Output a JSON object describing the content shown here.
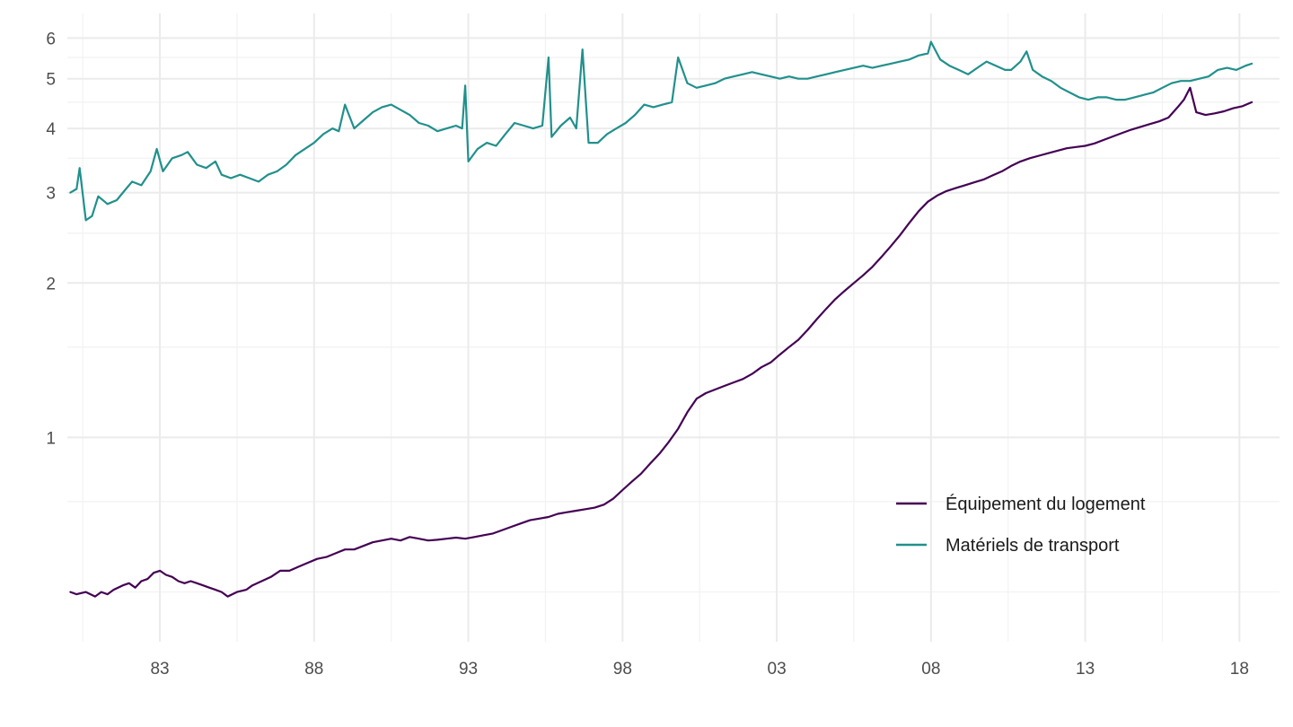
{
  "chart_data": {
    "type": "line",
    "x_scale": "time",
    "y_scale": "log",
    "xlim": [
      1980.0,
      2019.3
    ],
    "ylim": [
      0.4,
      6.7
    ],
    "grid": true,
    "legend_position": "bottom-right",
    "x_ticks": [
      {
        "value": 1983,
        "label": "83"
      },
      {
        "value": 1988,
        "label": "88"
      },
      {
        "value": 1993,
        "label": "93"
      },
      {
        "value": 1998,
        "label": "98"
      },
      {
        "value": 2003,
        "label": "03"
      },
      {
        "value": 2008,
        "label": "08"
      },
      {
        "value": 2013,
        "label": "13"
      },
      {
        "value": 2018,
        "label": "18"
      }
    ],
    "y_ticks": [
      {
        "value": 1,
        "label": "1"
      },
      {
        "value": 2,
        "label": "2"
      },
      {
        "value": 3,
        "label": "3"
      },
      {
        "value": 4,
        "label": "4"
      },
      {
        "value": 5,
        "label": "5"
      },
      {
        "value": 6,
        "label": "6"
      }
    ],
    "y_minor": [
      0.5,
      0.75,
      1.5,
      2.5,
      3.5,
      4.5,
      5.5
    ],
    "series": [
      {
        "name": "Équipement du logement",
        "color": "#440154",
        "points": [
          [
            1980.1,
            0.5
          ],
          [
            1980.3,
            0.495
          ],
          [
            1980.6,
            0.5
          ],
          [
            1980.9,
            0.49
          ],
          [
            1981.1,
            0.5
          ],
          [
            1981.3,
            0.495
          ],
          [
            1981.5,
            0.505
          ],
          [
            1981.8,
            0.515
          ],
          [
            1982.0,
            0.52
          ],
          [
            1982.2,
            0.51
          ],
          [
            1982.4,
            0.525
          ],
          [
            1982.6,
            0.53
          ],
          [
            1982.8,
            0.545
          ],
          [
            1983.0,
            0.55
          ],
          [
            1983.2,
            0.54
          ],
          [
            1983.4,
            0.535
          ],
          [
            1983.6,
            0.525
          ],
          [
            1983.8,
            0.52
          ],
          [
            1984.0,
            0.525
          ],
          [
            1984.2,
            0.52
          ],
          [
            1984.4,
            0.515
          ],
          [
            1984.6,
            0.51
          ],
          [
            1984.8,
            0.505
          ],
          [
            1985.0,
            0.5
          ],
          [
            1985.2,
            0.49
          ],
          [
            1985.5,
            0.5
          ],
          [
            1985.8,
            0.505
          ],
          [
            1986.0,
            0.515
          ],
          [
            1986.3,
            0.525
          ],
          [
            1986.6,
            0.535
          ],
          [
            1986.9,
            0.55
          ],
          [
            1987.2,
            0.55
          ],
          [
            1987.5,
            0.56
          ],
          [
            1987.8,
            0.57
          ],
          [
            1988.1,
            0.58
          ],
          [
            1988.4,
            0.585
          ],
          [
            1988.7,
            0.595
          ],
          [
            1989.0,
            0.605
          ],
          [
            1989.3,
            0.605
          ],
          [
            1989.6,
            0.615
          ],
          [
            1989.9,
            0.625
          ],
          [
            1990.2,
            0.63
          ],
          [
            1990.5,
            0.635
          ],
          [
            1990.8,
            0.63
          ],
          [
            1991.1,
            0.64
          ],
          [
            1991.4,
            0.635
          ],
          [
            1991.7,
            0.63
          ],
          [
            1992.0,
            0.632
          ],
          [
            1992.3,
            0.635
          ],
          [
            1992.6,
            0.638
          ],
          [
            1992.9,
            0.635
          ],
          [
            1993.2,
            0.64
          ],
          [
            1993.5,
            0.645
          ],
          [
            1993.8,
            0.65
          ],
          [
            1994.1,
            0.66
          ],
          [
            1994.4,
            0.67
          ],
          [
            1994.7,
            0.68
          ],
          [
            1995.0,
            0.69
          ],
          [
            1995.3,
            0.695
          ],
          [
            1995.6,
            0.7
          ],
          [
            1995.9,
            0.71
          ],
          [
            1996.2,
            0.715
          ],
          [
            1996.5,
            0.72
          ],
          [
            1996.8,
            0.725
          ],
          [
            1997.1,
            0.73
          ],
          [
            1997.4,
            0.74
          ],
          [
            1997.7,
            0.76
          ],
          [
            1998.0,
            0.79
          ],
          [
            1998.3,
            0.82
          ],
          [
            1998.6,
            0.85
          ],
          [
            1998.9,
            0.89
          ],
          [
            1999.2,
            0.93
          ],
          [
            1999.5,
            0.98
          ],
          [
            1999.8,
            1.04
          ],
          [
            2000.1,
            1.12
          ],
          [
            2000.4,
            1.19
          ],
          [
            2000.7,
            1.22
          ],
          [
            2001.0,
            1.24
          ],
          [
            2001.3,
            1.26
          ],
          [
            2001.6,
            1.28
          ],
          [
            2001.9,
            1.3
          ],
          [
            2002.2,
            1.33
          ],
          [
            2002.5,
            1.37
          ],
          [
            2002.8,
            1.4
          ],
          [
            2003.1,
            1.45
          ],
          [
            2003.4,
            1.5
          ],
          [
            2003.7,
            1.55
          ],
          [
            2004.0,
            1.62
          ],
          [
            2004.3,
            1.7
          ],
          [
            2004.6,
            1.78
          ],
          [
            2004.9,
            1.86
          ],
          [
            2005.2,
            1.93
          ],
          [
            2005.5,
            2.0
          ],
          [
            2005.8,
            2.07
          ],
          [
            2006.1,
            2.15
          ],
          [
            2006.4,
            2.25
          ],
          [
            2006.7,
            2.36
          ],
          [
            2007.0,
            2.48
          ],
          [
            2007.3,
            2.62
          ],
          [
            2007.6,
            2.76
          ],
          [
            2007.9,
            2.88
          ],
          [
            2008.2,
            2.96
          ],
          [
            2008.5,
            3.02
          ],
          [
            2008.8,
            3.06
          ],
          [
            2009.1,
            3.1
          ],
          [
            2009.4,
            3.14
          ],
          [
            2009.7,
            3.18
          ],
          [
            2010.0,
            3.24
          ],
          [
            2010.3,
            3.3
          ],
          [
            2010.6,
            3.38
          ],
          [
            2010.9,
            3.45
          ],
          [
            2011.2,
            3.5
          ],
          [
            2011.5,
            3.54
          ],
          [
            2011.8,
            3.58
          ],
          [
            2012.1,
            3.62
          ],
          [
            2012.4,
            3.66
          ],
          [
            2012.7,
            3.68
          ],
          [
            2013.0,
            3.7
          ],
          [
            2013.3,
            3.74
          ],
          [
            2013.6,
            3.8
          ],
          [
            2013.9,
            3.86
          ],
          [
            2014.2,
            3.92
          ],
          [
            2014.5,
            3.98
          ],
          [
            2014.8,
            4.03
          ],
          [
            2015.1,
            4.08
          ],
          [
            2015.4,
            4.13
          ],
          [
            2015.7,
            4.2
          ],
          [
            2016.0,
            4.4
          ],
          [
            2016.2,
            4.55
          ],
          [
            2016.4,
            4.8
          ],
          [
            2016.6,
            4.3
          ],
          [
            2016.9,
            4.25
          ],
          [
            2017.2,
            4.28
          ],
          [
            2017.5,
            4.32
          ],
          [
            2017.8,
            4.38
          ],
          [
            2018.1,
            4.42
          ],
          [
            2018.4,
            4.5
          ]
        ]
      },
      {
        "name": "Matériels de transport",
        "color": "#21908C",
        "points": [
          [
            1980.1,
            3.0
          ],
          [
            1980.3,
            3.05
          ],
          [
            1980.4,
            3.35
          ],
          [
            1980.6,
            2.65
          ],
          [
            1980.8,
            2.7
          ],
          [
            1981.0,
            2.95
          ],
          [
            1981.3,
            2.85
          ],
          [
            1981.6,
            2.9
          ],
          [
            1981.9,
            3.05
          ],
          [
            1982.1,
            3.15
          ],
          [
            1982.4,
            3.1
          ],
          [
            1982.7,
            3.3
          ],
          [
            1982.9,
            3.65
          ],
          [
            1983.1,
            3.3
          ],
          [
            1983.4,
            3.5
          ],
          [
            1983.7,
            3.55
          ],
          [
            1983.9,
            3.6
          ],
          [
            1984.2,
            3.4
          ],
          [
            1984.5,
            3.35
          ],
          [
            1984.8,
            3.45
          ],
          [
            1985.0,
            3.25
          ],
          [
            1985.3,
            3.2
          ],
          [
            1985.6,
            3.25
          ],
          [
            1985.9,
            3.2
          ],
          [
            1986.2,
            3.15
          ],
          [
            1986.5,
            3.25
          ],
          [
            1986.8,
            3.3
          ],
          [
            1987.1,
            3.4
          ],
          [
            1987.4,
            3.55
          ],
          [
            1987.7,
            3.65
          ],
          [
            1988.0,
            3.75
          ],
          [
            1988.3,
            3.9
          ],
          [
            1988.6,
            4.0
          ],
          [
            1988.8,
            3.95
          ],
          [
            1989.0,
            4.45
          ],
          [
            1989.3,
            4.0
          ],
          [
            1989.6,
            4.15
          ],
          [
            1989.9,
            4.3
          ],
          [
            1990.2,
            4.4
          ],
          [
            1990.5,
            4.45
          ],
          [
            1990.8,
            4.35
          ],
          [
            1991.1,
            4.25
          ],
          [
            1991.4,
            4.1
          ],
          [
            1991.7,
            4.05
          ],
          [
            1992.0,
            3.95
          ],
          [
            1992.3,
            4.0
          ],
          [
            1992.6,
            4.05
          ],
          [
            1992.8,
            4.0
          ],
          [
            1992.9,
            4.85
          ],
          [
            1993.0,
            3.45
          ],
          [
            1993.3,
            3.65
          ],
          [
            1993.6,
            3.75
          ],
          [
            1993.9,
            3.7
          ],
          [
            1994.2,
            3.9
          ],
          [
            1994.5,
            4.1
          ],
          [
            1994.8,
            4.05
          ],
          [
            1995.1,
            4.0
          ],
          [
            1995.4,
            4.05
          ],
          [
            1995.6,
            5.5
          ],
          [
            1995.7,
            3.85
          ],
          [
            1996.0,
            4.05
          ],
          [
            1996.3,
            4.2
          ],
          [
            1996.5,
            4.0
          ],
          [
            1996.7,
            5.7
          ],
          [
            1996.9,
            3.75
          ],
          [
            1997.2,
            3.75
          ],
          [
            1997.5,
            3.9
          ],
          [
            1997.8,
            4.0
          ],
          [
            1998.1,
            4.1
          ],
          [
            1998.4,
            4.25
          ],
          [
            1998.7,
            4.45
          ],
          [
            1999.0,
            4.4
          ],
          [
            1999.3,
            4.45
          ],
          [
            1999.6,
            4.5
          ],
          [
            1999.8,
            5.5
          ],
          [
            2000.1,
            4.9
          ],
          [
            2000.4,
            4.8
          ],
          [
            2000.7,
            4.85
          ],
          [
            2001.0,
            4.9
          ],
          [
            2001.3,
            5.0
          ],
          [
            2001.6,
            5.05
          ],
          [
            2001.9,
            5.1
          ],
          [
            2002.2,
            5.15
          ],
          [
            2002.5,
            5.1
          ],
          [
            2002.8,
            5.05
          ],
          [
            2003.1,
            5.0
          ],
          [
            2003.4,
            5.05
          ],
          [
            2003.7,
            5.0
          ],
          [
            2004.0,
            5.0
          ],
          [
            2004.3,
            5.05
          ],
          [
            2004.6,
            5.1
          ],
          [
            2004.9,
            5.15
          ],
          [
            2005.2,
            5.2
          ],
          [
            2005.5,
            5.25
          ],
          [
            2005.8,
            5.3
          ],
          [
            2006.1,
            5.25
          ],
          [
            2006.4,
            5.3
          ],
          [
            2006.7,
            5.35
          ],
          [
            2007.0,
            5.4
          ],
          [
            2007.3,
            5.45
          ],
          [
            2007.6,
            5.55
          ],
          [
            2007.9,
            5.6
          ],
          [
            2008.0,
            5.9
          ],
          [
            2008.3,
            5.45
          ],
          [
            2008.6,
            5.3
          ],
          [
            2008.9,
            5.2
          ],
          [
            2009.2,
            5.1
          ],
          [
            2009.5,
            5.25
          ],
          [
            2009.8,
            5.4
          ],
          [
            2010.1,
            5.3
          ],
          [
            2010.4,
            5.2
          ],
          [
            2010.6,
            5.2
          ],
          [
            2010.9,
            5.4
          ],
          [
            2011.1,
            5.65
          ],
          [
            2011.3,
            5.2
          ],
          [
            2011.6,
            5.05
          ],
          [
            2011.9,
            4.95
          ],
          [
            2012.2,
            4.8
          ],
          [
            2012.5,
            4.7
          ],
          [
            2012.8,
            4.6
          ],
          [
            2013.1,
            4.55
          ],
          [
            2013.4,
            4.6
          ],
          [
            2013.7,
            4.6
          ],
          [
            2014.0,
            4.55
          ],
          [
            2014.3,
            4.55
          ],
          [
            2014.6,
            4.6
          ],
          [
            2014.9,
            4.65
          ],
          [
            2015.2,
            4.7
          ],
          [
            2015.5,
            4.8
          ],
          [
            2015.8,
            4.9
          ],
          [
            2016.1,
            4.95
          ],
          [
            2016.4,
            4.95
          ],
          [
            2016.7,
            5.0
          ],
          [
            2017.0,
            5.05
          ],
          [
            2017.3,
            5.2
          ],
          [
            2017.6,
            5.25
          ],
          [
            2017.9,
            5.2
          ],
          [
            2018.2,
            5.3
          ],
          [
            2018.4,
            5.35
          ]
        ]
      }
    ]
  }
}
